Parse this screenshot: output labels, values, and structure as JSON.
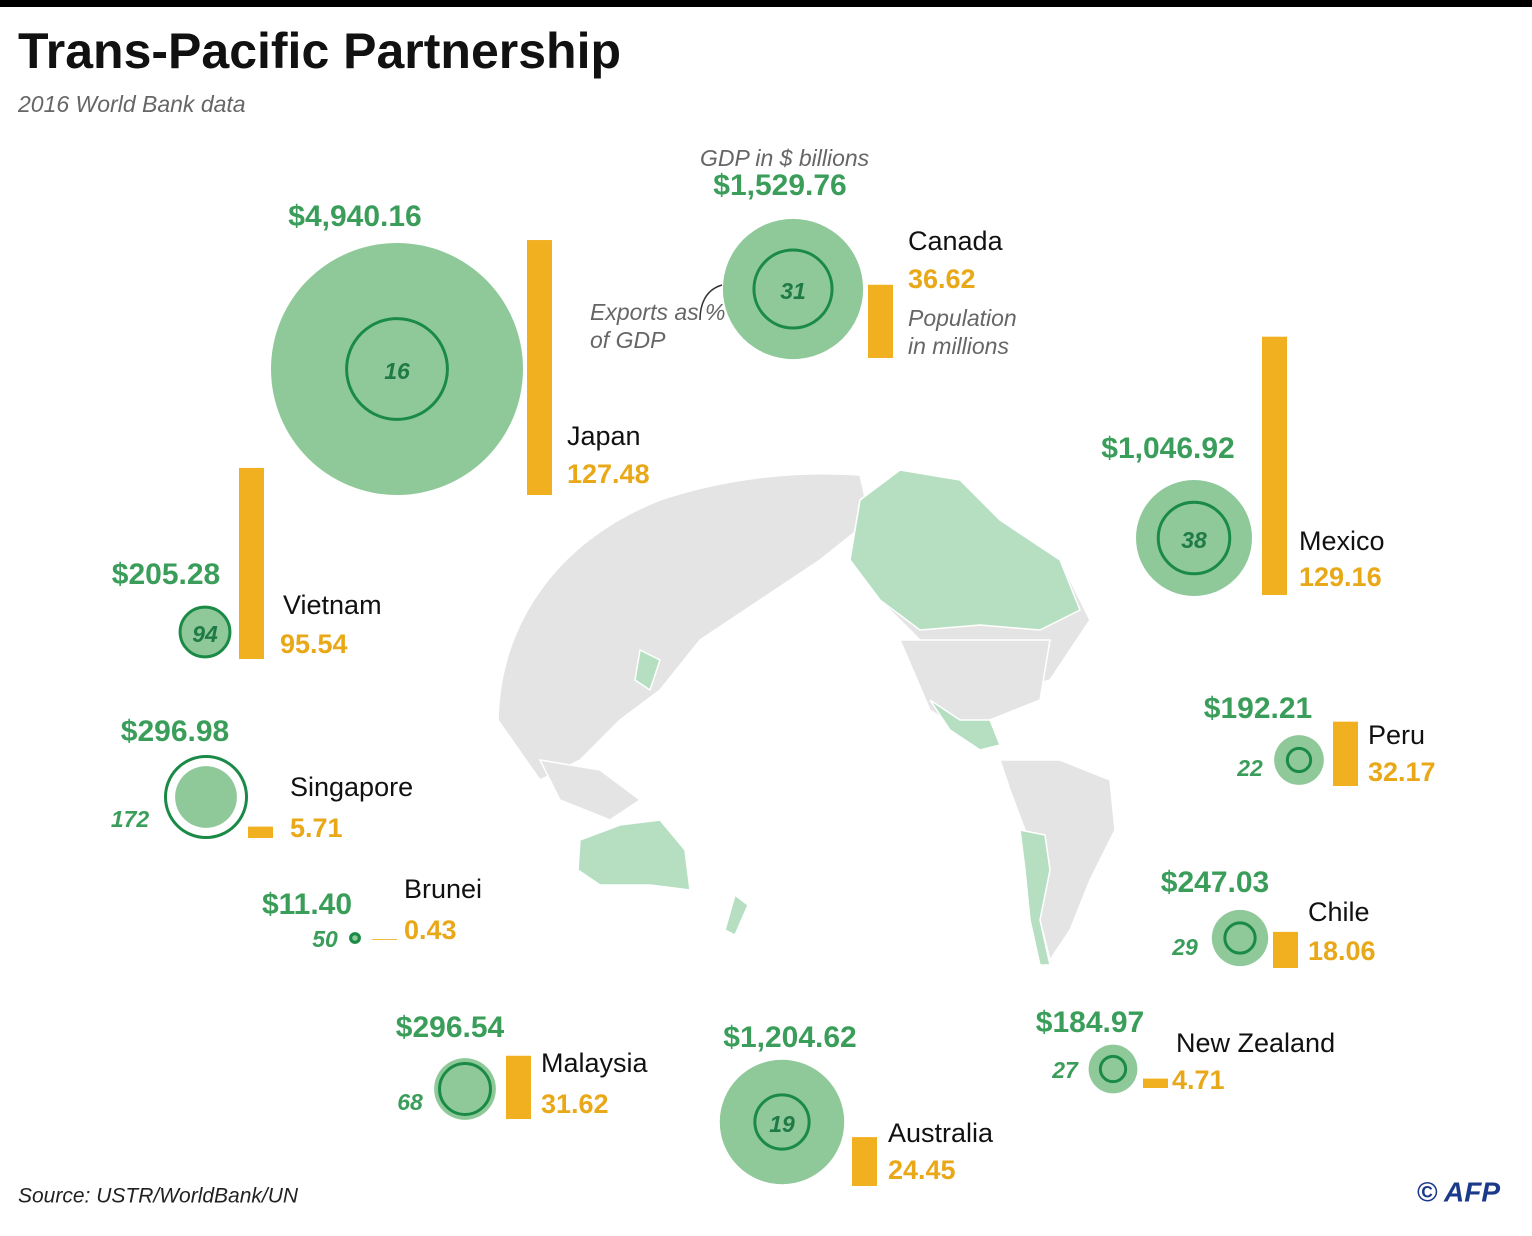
{
  "chart_data": {
    "type": "bubble-bar",
    "title": "Trans-Pacific Partnership",
    "subtitle": "2016 World Bank data",
    "source": "Source: USTR/WorldBank/UN",
    "credit": "© AFP",
    "categories": [
      "Japan",
      "Canada",
      "Mexico",
      "Vietnam",
      "Singapore",
      "Brunei",
      "Malaysia",
      "Australia",
      "New Zealand",
      "Chile",
      "Peru"
    ],
    "series": [
      {
        "name": "GDP in $ billions",
        "color": "#8fc99a",
        "values": [
          4940.16,
          1529.76,
          1046.92,
          205.28,
          296.98,
          11.4,
          296.54,
          1204.62,
          184.97,
          247.03,
          192.21
        ],
        "value_labels": [
          "$4,940.16",
          "$1,529.76",
          "$1,046.92",
          "$205.28",
          "$296.98",
          "$11.40",
          "$296.54",
          "$1,204.62",
          "$184.97",
          "$247.03",
          "$192.21"
        ]
      },
      {
        "name": "Exports as % of GDP",
        "color": "#1a8a46",
        "values": [
          16,
          31,
          38,
          94,
          172,
          50,
          68,
          19,
          27,
          29,
          22
        ]
      },
      {
        "name": "Population in millions",
        "color": "#f0b020",
        "values": [
          127.48,
          36.62,
          129.16,
          95.54,
          5.71,
          0.43,
          31.62,
          24.45,
          4.71,
          18.06,
          32.17
        ]
      }
    ]
  }
}
